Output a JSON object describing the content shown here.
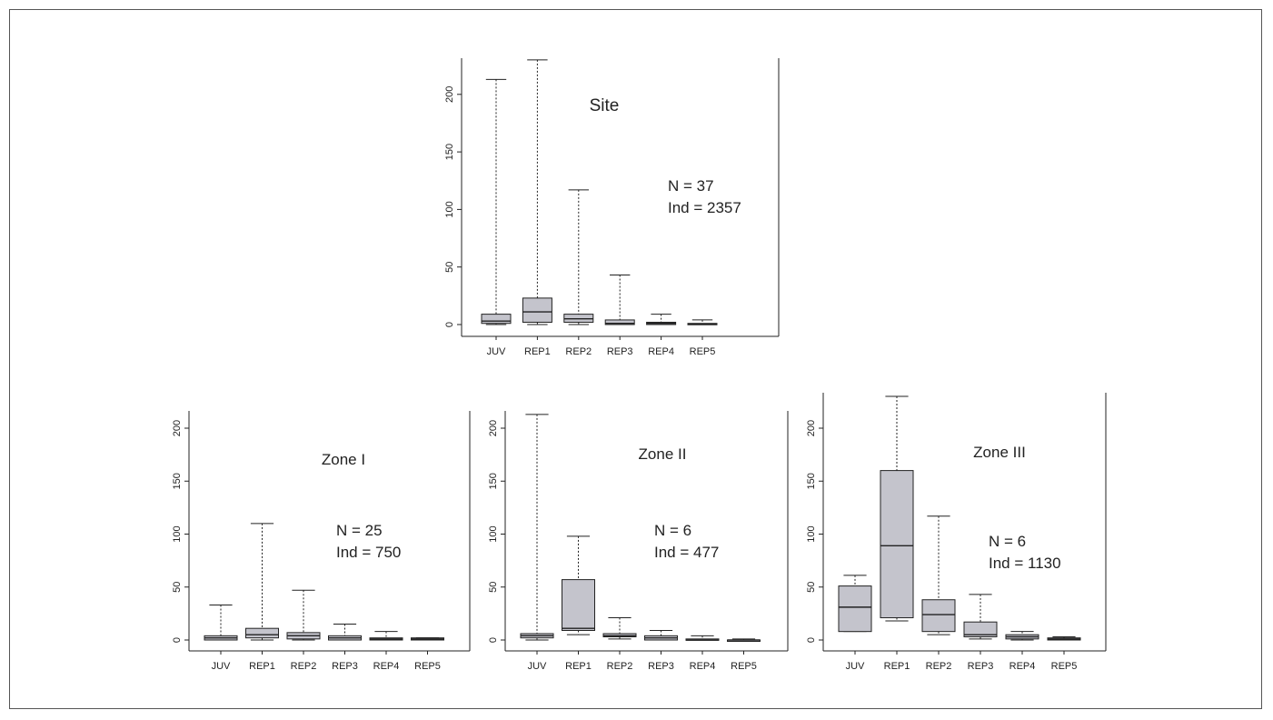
{
  "figure": {
    "box_fill": "#c4c4cc",
    "stroke": "#222222",
    "whisker_dash": "2,2"
  },
  "chart_data": [
    {
      "id": "site",
      "type": "boxplot",
      "title": "Site",
      "annotation": [
        "N = 37",
        "Ind = 2357"
      ],
      "categories": [
        "JUV",
        "REP1",
        "REP2",
        "REP3",
        "REP4",
        "REP5"
      ],
      "ylim": [
        0,
        230
      ],
      "yticks": [
        0,
        50,
        100,
        150,
        200
      ],
      "boxes": [
        {
          "label": "JUV",
          "min": 0,
          "q1": 1,
          "median": 3,
          "q3": 9,
          "max": 213
        },
        {
          "label": "REP1",
          "min": 0,
          "q1": 2,
          "median": 11,
          "q3": 23,
          "max": 230
        },
        {
          "label": "REP2",
          "min": 0,
          "q1": 2,
          "median": 5,
          "q3": 9,
          "max": 117
        },
        {
          "label": "REP3",
          "min": 0,
          "q1": 0,
          "median": 1,
          "q3": 4,
          "max": 43
        },
        {
          "label": "REP4",
          "min": 0,
          "q1": 0,
          "median": 1,
          "q3": 2,
          "max": 9
        },
        {
          "label": "REP5",
          "min": 0,
          "q1": 0,
          "median": 0.5,
          "q3": 1,
          "max": 4
        }
      ]
    },
    {
      "id": "zone1",
      "type": "boxplot",
      "title": "Zone I",
      "annotation": [
        "N = 25",
        "Ind = 750"
      ],
      "categories": [
        "JUV",
        "REP1",
        "REP2",
        "REP3",
        "REP4",
        "REP5"
      ],
      "ylim": [
        0,
        215
      ],
      "yticks": [
        0,
        50,
        100,
        150,
        200
      ],
      "boxes": [
        {
          "label": "JUV",
          "min": 0,
          "q1": 0,
          "median": 2,
          "q3": 4,
          "max": 33
        },
        {
          "label": "REP1",
          "min": 0,
          "q1": 2,
          "median": 5,
          "q3": 11,
          "max": 110
        },
        {
          "label": "REP2",
          "min": 0,
          "q1": 1,
          "median": 4,
          "q3": 7,
          "max": 47
        },
        {
          "label": "REP3",
          "min": 0,
          "q1": 0,
          "median": 2,
          "q3": 4,
          "max": 15
        },
        {
          "label": "REP4",
          "min": 0,
          "q1": 0,
          "median": 1,
          "q3": 2,
          "max": 8
        },
        {
          "label": "REP5",
          "min": 0,
          "q1": 0,
          "median": 1,
          "q3": 2,
          "max": 2
        }
      ]
    },
    {
      "id": "zone2",
      "type": "boxplot",
      "title": "Zone II",
      "annotation": [
        "N = 6",
        "Ind = 477"
      ],
      "categories": [
        "JUV",
        "REP1",
        "REP2",
        "REP3",
        "REP4",
        "REP5"
      ],
      "ylim": [
        0,
        215
      ],
      "yticks": [
        0,
        50,
        100,
        150,
        200
      ],
      "boxes": [
        {
          "label": "JUV",
          "min": 0,
          "q1": 2,
          "median": 4,
          "q3": 6,
          "max": 213
        },
        {
          "label": "REP1",
          "min": 5,
          "q1": 9,
          "median": 11,
          "q3": 57,
          "max": 98
        },
        {
          "label": "REP2",
          "min": 1,
          "q1": 3,
          "median": 4,
          "q3": 6,
          "max": 21
        },
        {
          "label": "REP3",
          "min": 0,
          "q1": 0,
          "median": 2,
          "q3": 4,
          "max": 9
        },
        {
          "label": "REP4",
          "min": 0,
          "q1": 0,
          "median": 0,
          "q3": 1,
          "max": 4
        },
        {
          "label": "REP5",
          "min": 0,
          "q1": 0,
          "median": 0,
          "q3": 0,
          "max": 1
        }
      ]
    },
    {
      "id": "zone3",
      "type": "boxplot",
      "title": "Zone III",
      "annotation": [
        "N = 6",
        "Ind = 1130"
      ],
      "categories": [
        "JUV",
        "REP1",
        "REP2",
        "REP3",
        "REP4",
        "REP5"
      ],
      "ylim": [
        0,
        230
      ],
      "yticks": [
        0,
        50,
        100,
        150,
        200
      ],
      "boxes": [
        {
          "label": "JUV",
          "min": 8,
          "q1": 8,
          "median": 31,
          "q3": 51,
          "max": 61
        },
        {
          "label": "REP1",
          "min": 18,
          "q1": 21,
          "median": 89,
          "q3": 160,
          "max": 230
        },
        {
          "label": "REP2",
          "min": 5,
          "q1": 8,
          "median": 24,
          "q3": 38,
          "max": 117
        },
        {
          "label": "REP3",
          "min": 1,
          "q1": 3,
          "median": 5,
          "q3": 17,
          "max": 43
        },
        {
          "label": "REP4",
          "min": 0,
          "q1": 1,
          "median": 3,
          "q3": 5,
          "max": 8
        },
        {
          "label": "REP5",
          "min": 0,
          "q1": 0,
          "median": 1,
          "q3": 2,
          "max": 3
        }
      ]
    }
  ]
}
